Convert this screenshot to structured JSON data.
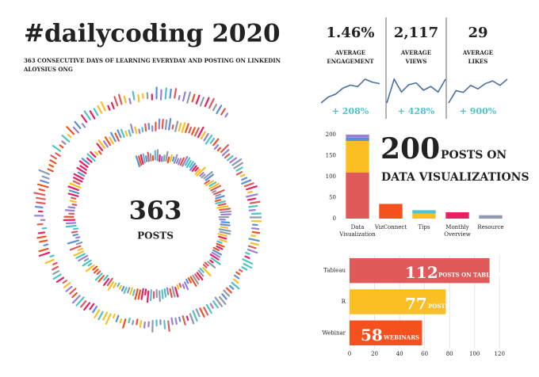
{
  "header": {
    "title": "#dailycoding 2020",
    "subtitle": "363 CONSECUTIVE DAYS OF LEARNING EVERYDAY AND  POSTING ON LINKEDIN",
    "author": "ALOYSIUS ONG"
  },
  "spiral": {
    "number": "363",
    "label": "POSTS"
  },
  "kpis": [
    {
      "value": "1.46%",
      "label": [
        "AVERAGE",
        "ENGAGEMENT"
      ],
      "change": "+ 208%",
      "trend": [
        0.5,
        0.7,
        0.8,
        1.0,
        1.1,
        1.05,
        1.3,
        1.2,
        1.15
      ]
    },
    {
      "value": "2,117",
      "label": [
        "AVERAGE",
        "VIEWS"
      ],
      "change": "+ 428%",
      "trend": [
        900,
        2200,
        1500,
        1900,
        2000,
        1600,
        1800,
        1500,
        2200
      ]
    },
    {
      "value": "29",
      "label": [
        "AVERAGE",
        "LIKES"
      ],
      "change": "+ 900%",
      "trend": [
        8,
        22,
        20,
        28,
        24,
        30,
        33,
        28,
        35
      ]
    }
  ],
  "chart_data": [
    {
      "type": "stacked-bar",
      "headline": {
        "number": "200",
        "text1": "POSTS ON",
        "text2": "DATA VISUALIZATIONS"
      },
      "categories": [
        "Data Visualization",
        "VizConnect",
        "Tips",
        "Monthly Overview",
        "Resource"
      ],
      "series": [
        {
          "color": "#e05a5a",
          "values": [
            110,
            0,
            0,
            0,
            0
          ]
        },
        {
          "color": "#fbbf24",
          "values": [
            75,
            0,
            12,
            0,
            0
          ]
        },
        {
          "color": "#5b8fd6",
          "values": [
            8,
            0,
            0,
            0,
            0
          ]
        },
        {
          "color": "#9b7fd4",
          "values": [
            7,
            0,
            0,
            0,
            0
          ]
        },
        {
          "color": "#f4511e",
          "values": [
            0,
            35,
            0,
            0,
            0
          ]
        },
        {
          "color": "#4fc3c8",
          "values": [
            0,
            0,
            8,
            0,
            0
          ]
        },
        {
          "color": "#e91e63",
          "values": [
            0,
            0,
            0,
            15,
            0
          ]
        },
        {
          "color": "#8e9aaf",
          "values": [
            0,
            0,
            0,
            0,
            8
          ]
        }
      ],
      "ylim": [
        0,
        200
      ],
      "yticks": [
        0,
        50,
        100,
        150,
        200
      ]
    },
    {
      "type": "hbar",
      "categories": [
        "Tableau",
        "R",
        "Webinar"
      ],
      "values": [
        112,
        77,
        58
      ],
      "colors": [
        "#e05a5a",
        "#fbbf24",
        "#f4511e"
      ],
      "annotations": [
        "POSTS ON TABLEAU",
        "POSTS ON R",
        "WEBINARS"
      ],
      "xlim": [
        0,
        130
      ],
      "xticks": [
        0,
        20,
        40,
        60,
        80,
        100,
        120
      ],
      "grid": true
    }
  ]
}
